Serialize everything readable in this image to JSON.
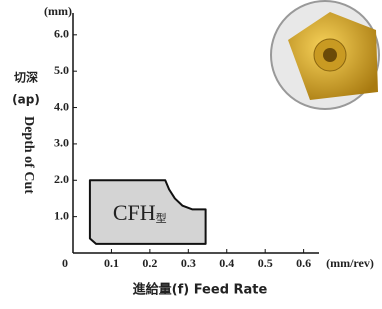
{
  "chart_data": {
    "type": "area-region",
    "y_unit": "(mm)",
    "y_label_cn": "切深",
    "y_label_abbr": "(ap)",
    "y_label": "Depth of Cut",
    "x_label": "進給量(f) Feed Rate",
    "x_unit": "(mm/rev)",
    "xlim": [
      0,
      0.64
    ],
    "ylim": [
      0,
      6.6
    ],
    "xticks": [
      0,
      0.1,
      0.2,
      0.3,
      0.4,
      0.5,
      0.6
    ],
    "yticks": [
      {
        "value": 1,
        "label": "1.0"
      },
      {
        "value": 2,
        "label": "2.0"
      },
      {
        "value": 3,
        "label": "3.0"
      },
      {
        "value": 4,
        "label": "4.0"
      },
      {
        "value": 5,
        "label": "5.0"
      },
      {
        "value": 6,
        "label": "6.0"
      }
    ],
    "region": {
      "label": "CFH",
      "label_suffix": "型",
      "color": "#d4d4d4",
      "x": [
        0.044,
        0.24,
        0.25,
        0.265,
        0.285,
        0.31,
        0.345,
        0.345,
        0.06,
        0.044
      ],
      "y": [
        2.0,
        2.0,
        1.75,
        1.5,
        1.3,
        1.2,
        1.2,
        0.25,
        0.25,
        0.4
      ]
    }
  }
}
